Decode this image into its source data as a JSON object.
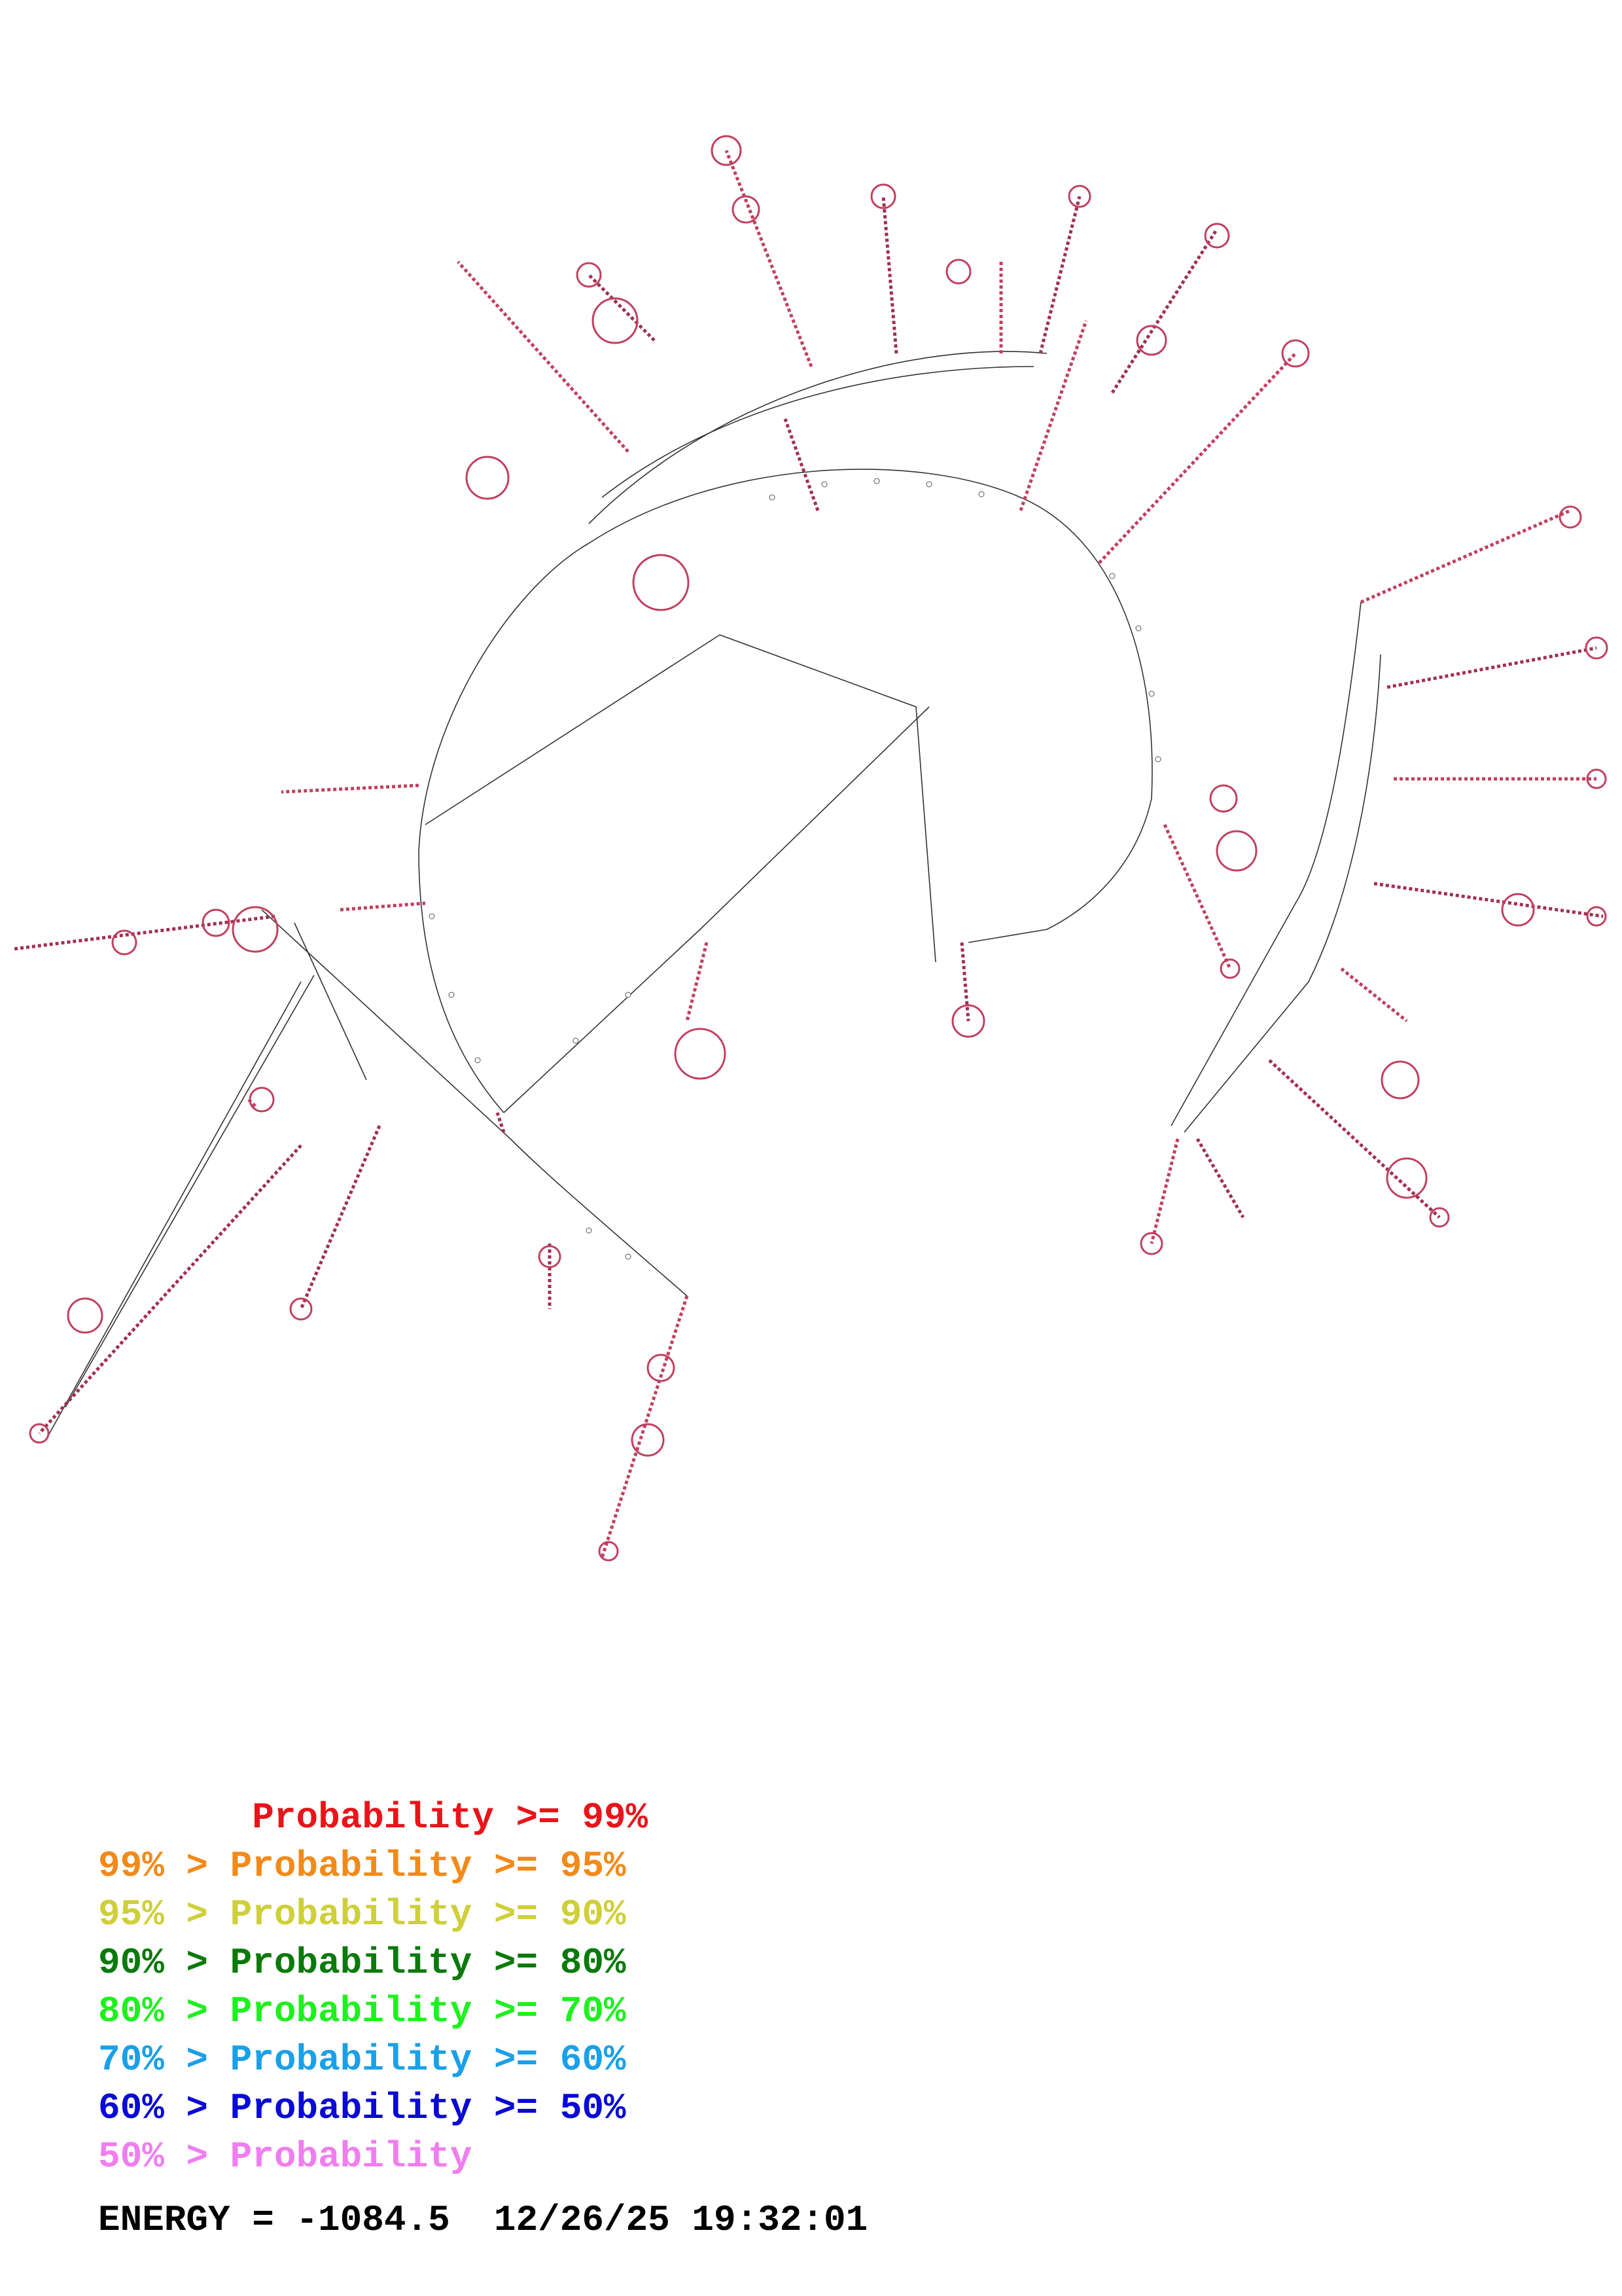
{
  "legend": [
    {
      "prefix": "       ",
      "label": "Probability >= 99%",
      "color": "#e8141a"
    },
    {
      "prefix": "99% > ",
      "label": "Probability >= 95%",
      "color": "#f28a1a"
    },
    {
      "prefix": "95% > ",
      "label": "Probability >= 90%",
      "color": "#cfcf3a"
    },
    {
      "prefix": "90% > ",
      "label": "Probability >= 80%",
      "color": "#0a7a0a"
    },
    {
      "prefix": "80% > ",
      "label": "Probability >= 70%",
      "color": "#1ff01f"
    },
    {
      "prefix": "70% > ",
      "label": "Probability >= 60%",
      "color": "#1aa0e8"
    },
    {
      "prefix": "60% > ",
      "label": "Probability >= 50%",
      "color": "#0a0ad4"
    },
    {
      "prefix": "50% > ",
      "label": "Probability",
      "color": "#f07ef0"
    }
  ],
  "footer": {
    "energy": "ENERGY = -1084.5",
    "timestamp": "12/26/25 19:32:01"
  }
}
